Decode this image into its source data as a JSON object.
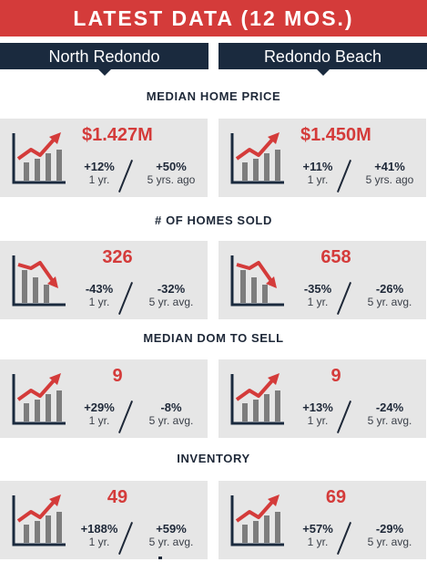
{
  "header": {
    "title": "LATEST DATA (12 MOS.)"
  },
  "tabs": {
    "left": "North Redondo",
    "right": "Redondo Beach"
  },
  "colors": {
    "accent_red": "#d43b3a",
    "navy": "#1a2a3e",
    "card_bg": "#e6e6e6",
    "bar_gray": "#7d7d7d"
  },
  "icons": {
    "up": "trend-up-chart-icon",
    "down": "trend-down-chart-icon"
  },
  "sections": [
    {
      "title": "MEDIAN HOME PRICE",
      "north": {
        "value": "$1.427M",
        "stat1": "+12%",
        "label1": "1 yr.",
        "stat2": "+50%",
        "label2": "5 yrs. ago",
        "trend": "up"
      },
      "redondo": {
        "value": "$1.450M",
        "stat1": "+11%",
        "label1": "1 yr.",
        "stat2": "+41%",
        "label2": "5 yrs. ago",
        "trend": "up"
      }
    },
    {
      "title": "# OF HOMES SOLD",
      "north": {
        "value": "326",
        "stat1": "-43%",
        "label1": "1 yr.",
        "stat2": "-32%",
        "label2": "5 yr. avg.",
        "trend": "down"
      },
      "redondo": {
        "value": "658",
        "stat1": "-35%",
        "label1": "1 yr.",
        "stat2": "-26%",
        "label2": "5 yr. avg.",
        "trend": "down"
      }
    },
    {
      "title": "MEDIAN DOM TO SELL",
      "north": {
        "value": "9",
        "stat1": "+29%",
        "label1": "1 yr.",
        "stat2": "-8%",
        "label2": "5 yr. avg.",
        "trend": "up"
      },
      "redondo": {
        "value": "9",
        "stat1": "+13%",
        "label1": "1 yr.",
        "stat2": "-24%",
        "label2": "5 yr. avg.",
        "trend": "up"
      }
    },
    {
      "title": "INVENTORY",
      "north": {
        "value": "49",
        "stat1": "+188%",
        "label1": "1 yr.",
        "stat2": "+59%",
        "label2": "5 yr. avg.",
        "trend": "up"
      },
      "redondo": {
        "value": "69",
        "stat1": "+57%",
        "label1": "1 yr.",
        "stat2": "-29%",
        "label2": "5 yr. avg.",
        "trend": "up"
      }
    }
  ]
}
